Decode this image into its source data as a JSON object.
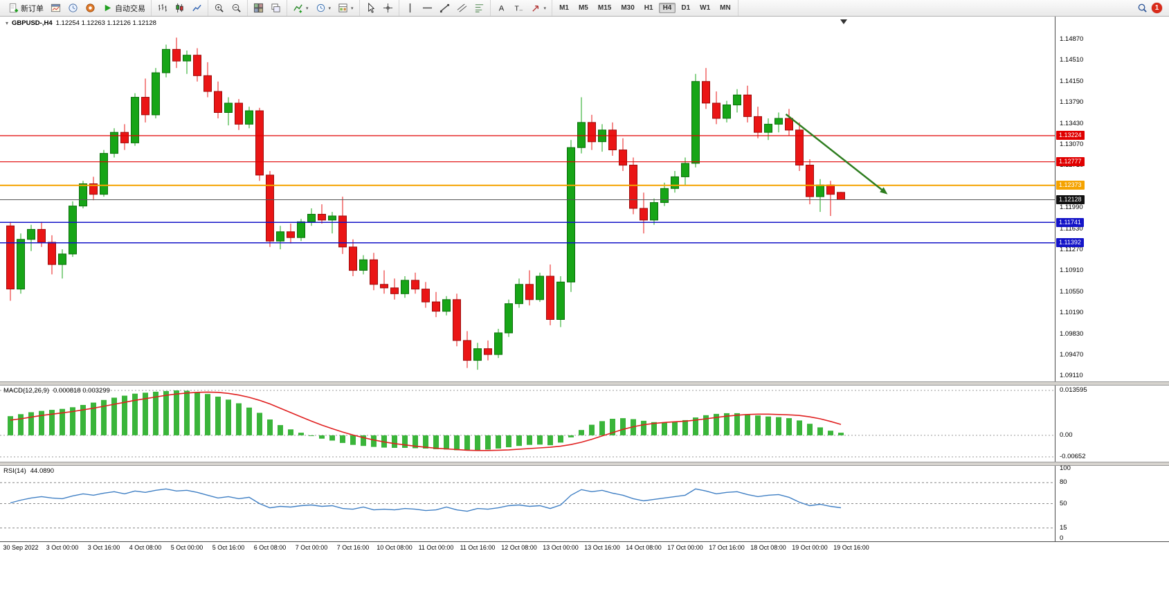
{
  "toolbar": {
    "groups": [
      {
        "items": [
          {
            "name": "new-order-button",
            "icon": "doc-plus",
            "label": "新订单"
          },
          {
            "name": "charts-button",
            "icon": "charts"
          },
          {
            "name": "market-watch-button",
            "icon": "market-watch"
          },
          {
            "name": "data-window-button",
            "icon": "data-window"
          },
          {
            "name": "autotrading-button",
            "icon": "autotrading-play",
            "label": "自动交易"
          }
        ]
      },
      {
        "items": [
          {
            "name": "bar-chart-button",
            "icon": "bar-chart"
          },
          {
            "name": "candlestick-chart-button",
            "icon": "candles"
          },
          {
            "name": "line-chart-button",
            "icon": "line-chart"
          }
        ]
      },
      {
        "items": [
          {
            "name": "zoom-in-button",
            "icon": "zoom-in"
          },
          {
            "name": "zoom-out-button",
            "icon": "zoom-out"
          }
        ]
      },
      {
        "items": [
          {
            "name": "tile-windows-button",
            "icon": "tile-windows"
          },
          {
            "name": "cascade-windows-button",
            "icon": "cascade-windows"
          }
        ]
      },
      {
        "items": [
          {
            "name": "indicators-button",
            "icon": "indicators",
            "caret": true
          },
          {
            "name": "periods-button",
            "icon": "periods-clock",
            "caret": true
          },
          {
            "name": "templates-button",
            "icon": "templates",
            "caret": true
          }
        ]
      },
      {
        "items": [
          {
            "name": "cursor-button",
            "icon": "cursor"
          },
          {
            "name": "crosshair-button",
            "icon": "crosshair"
          }
        ]
      },
      {
        "items": [
          {
            "name": "vertical-line-button",
            "icon": "vline"
          },
          {
            "name": "horizontal-line-button",
            "icon": "hline"
          },
          {
            "name": "trendline-button",
            "icon": "trendline"
          },
          {
            "name": "channel-button",
            "icon": "channel"
          },
          {
            "name": "fibonacci-button",
            "icon": "fibonacci"
          }
        ]
      },
      {
        "items": [
          {
            "name": "text-button",
            "icon": "text-a"
          },
          {
            "name": "text-label-button",
            "icon": "text-label"
          },
          {
            "name": "arrows-button",
            "icon": "arrows-tool",
            "caret": true
          }
        ]
      },
      {
        "items": [
          {
            "name": "tf-m1-button",
            "tf": "M1"
          },
          {
            "name": "tf-m5-button",
            "tf": "M5"
          },
          {
            "name": "tf-m15-button",
            "tf": "M15"
          },
          {
            "name": "tf-m30-button",
            "tf": "M30"
          },
          {
            "name": "tf-h1-button",
            "tf": "H1"
          },
          {
            "name": "tf-h4-button",
            "tf": "H4",
            "selected": true
          },
          {
            "name": "tf-d1-button",
            "tf": "D1"
          },
          {
            "name": "tf-w1-button",
            "tf": "W1"
          },
          {
            "name": "tf-mn-button",
            "tf": "MN"
          }
        ]
      }
    ],
    "right": {
      "badge": "1"
    }
  },
  "chart": {
    "title": "GBPUSD-,H4",
    "ohlc_text": "1.12254 1.12263 1.12126 1.12128"
  },
  "chart_data": {
    "type": "candlestick",
    "symbol": "GBPUSD-",
    "period": "H4",
    "price_range": [
      1.0902,
      1.1526
    ],
    "price_ticks": [
      "1.14870",
      "1.14510",
      "1.14150",
      "1.13790",
      "1.13430",
      "1.13070",
      "1.12710",
      "1.12350",
      "1.11990",
      "1.11630",
      "1.11270",
      "1.10910",
      "1.10550",
      "1.10190",
      "1.09830",
      "1.09470",
      "1.09110"
    ],
    "colors": {
      "up": "#17a517",
      "up_stroke": "#0b6e0b",
      "down": "#ea1515",
      "down_stroke": "#9c0b0b",
      "macd_hist": "#3ab53a",
      "macd_signal": "#e02020",
      "rsi_line": "#3f7fc4",
      "arrow": "#2e7d1f"
    },
    "candles": [
      [
        1.1168,
        1.1175,
        1.104,
        1.106
      ],
      [
        1.106,
        1.1155,
        1.1052,
        1.1145
      ],
      [
        1.1145,
        1.117,
        1.1125,
        1.1162
      ],
      [
        1.1162,
        1.1175,
        1.1132,
        1.114
      ],
      [
        1.114,
        1.1152,
        1.1085,
        1.1102
      ],
      [
        1.1102,
        1.1128,
        1.1078,
        1.112
      ],
      [
        1.112,
        1.121,
        1.1115,
        1.1202
      ],
      [
        1.1202,
        1.1245,
        1.1198,
        1.124
      ],
      [
        1.124,
        1.1252,
        1.1212,
        1.1222
      ],
      [
        1.1222,
        1.1298,
        1.1218,
        1.1292
      ],
      [
        1.1292,
        1.1335,
        1.1285,
        1.1328
      ],
      [
        1.1328,
        1.1342,
        1.1298,
        1.131
      ],
      [
        1.131,
        1.1395,
        1.1305,
        1.1388
      ],
      [
        1.1388,
        1.142,
        1.1345,
        1.1358
      ],
      [
        1.1358,
        1.1438,
        1.1352,
        1.143
      ],
      [
        1.143,
        1.1478,
        1.1422,
        1.147
      ],
      [
        1.147,
        1.149,
        1.1438,
        1.145
      ],
      [
        1.145,
        1.1468,
        1.1428,
        1.146
      ],
      [
        1.146,
        1.1472,
        1.1415,
        1.1425
      ],
      [
        1.1425,
        1.1448,
        1.1388,
        1.1398
      ],
      [
        1.1398,
        1.1415,
        1.1352,
        1.1362
      ],
      [
        1.1362,
        1.1388,
        1.134,
        1.1378
      ],
      [
        1.1378,
        1.1385,
        1.1332,
        1.1342
      ],
      [
        1.1342,
        1.1372,
        1.1335,
        1.1365
      ],
      [
        1.1365,
        1.137,
        1.1245,
        1.1255
      ],
      [
        1.1255,
        1.1262,
        1.1132,
        1.1142
      ],
      [
        1.1142,
        1.1168,
        1.1128,
        1.1158
      ],
      [
        1.1158,
        1.1172,
        1.1138,
        1.1148
      ],
      [
        1.1148,
        1.118,
        1.1142,
        1.1175
      ],
      [
        1.1175,
        1.1198,
        1.1168,
        1.1188
      ],
      [
        1.1188,
        1.1205,
        1.1172,
        1.1178
      ],
      [
        1.1178,
        1.1192,
        1.1155,
        1.1185
      ],
      [
        1.1185,
        1.1218,
        1.112,
        1.1132
      ],
      [
        1.1132,
        1.1145,
        1.1082,
        1.1092
      ],
      [
        1.1092,
        1.1118,
        1.1085,
        1.111
      ],
      [
        1.111,
        1.1122,
        1.1058,
        1.1068
      ],
      [
        1.1068,
        1.1092,
        1.1052,
        1.1062
      ],
      [
        1.1062,
        1.1078,
        1.1042,
        1.1052
      ],
      [
        1.1052,
        1.1082,
        1.1045,
        1.1075
      ],
      [
        1.1075,
        1.1088,
        1.1052,
        1.106
      ],
      [
        1.106,
        1.1072,
        1.1028,
        1.1038
      ],
      [
        1.1038,
        1.1055,
        1.1012,
        1.1022
      ],
      [
        1.1022,
        1.1048,
        1.1015,
        1.1042
      ],
      [
        1.1042,
        1.1052,
        1.0962,
        1.0972
      ],
      [
        1.0972,
        1.0988,
        1.0925,
        1.0938
      ],
      [
        1.0938,
        1.0968,
        1.0922,
        1.0958
      ],
      [
        1.0958,
        1.0972,
        1.0938,
        1.0948
      ],
      [
        1.0948,
        1.0992,
        1.0942,
        1.0985
      ],
      [
        1.0985,
        1.1042,
        1.0978,
        1.1035
      ],
      [
        1.1035,
        1.1078,
        1.1028,
        1.1068
      ],
      [
        1.1068,
        1.1092,
        1.1032,
        1.1042
      ],
      [
        1.1042,
        1.1088,
        1.1038,
        1.1082
      ],
      [
        1.1082,
        1.1102,
        1.0998,
        1.1008
      ],
      [
        1.1008,
        1.1082,
        1.0995,
        1.1072
      ],
      [
        1.1072,
        1.1315,
        1.1055,
        1.1302
      ],
      [
        1.1302,
        1.1388,
        1.1292,
        1.1345
      ],
      [
        1.1345,
        1.1358,
        1.1298,
        1.1312
      ],
      [
        1.1312,
        1.1342,
        1.1295,
        1.1332
      ],
      [
        1.1332,
        1.1345,
        1.1288,
        1.1298
      ],
      [
        1.1298,
        1.1318,
        1.1262,
        1.1272
      ],
      [
        1.1272,
        1.1285,
        1.1188,
        1.1198
      ],
      [
        1.1198,
        1.1225,
        1.1155,
        1.1178
      ],
      [
        1.1178,
        1.1215,
        1.117,
        1.1208
      ],
      [
        1.1208,
        1.1242,
        1.1202,
        1.1232
      ],
      [
        1.1232,
        1.1262,
        1.1225,
        1.1252
      ],
      [
        1.1252,
        1.1285,
        1.1238,
        1.1275
      ],
      [
        1.1275,
        1.1428,
        1.1268,
        1.1415
      ],
      [
        1.1415,
        1.1438,
        1.1368,
        1.1378
      ],
      [
        1.1378,
        1.1398,
        1.1342,
        1.1352
      ],
      [
        1.1352,
        1.1382,
        1.1345,
        1.1375
      ],
      [
        1.1375,
        1.1402,
        1.1362,
        1.1392
      ],
      [
        1.1392,
        1.1408,
        1.1345,
        1.1355
      ],
      [
        1.1355,
        1.1372,
        1.1318,
        1.1328
      ],
      [
        1.1328,
        1.1352,
        1.1315,
        1.1342
      ],
      [
        1.1342,
        1.1362,
        1.1328,
        1.1352
      ],
      [
        1.1352,
        1.1368,
        1.1322,
        1.1332
      ],
      [
        1.1332,
        1.1345,
        1.1262,
        1.1272
      ],
      [
        1.1272,
        1.1282,
        1.1205,
        1.1218
      ],
      [
        1.1218,
        1.1248,
        1.1192,
        1.1238
      ],
      [
        1.1238,
        1.1245,
        1.1185,
        1.1222
      ],
      [
        1.12254,
        1.12263,
        1.12126,
        1.12128
      ]
    ],
    "levels": [
      {
        "price": 1.13224,
        "label": "1.13224",
        "color": "#e00000",
        "width": 1.2
      },
      {
        "price": 1.12777,
        "label": "1.12777",
        "color": "#e00000",
        "width": 1.2
      },
      {
        "price": 1.12373,
        "label": "1.12373",
        "color": "#f5a300",
        "width": 2
      },
      {
        "price": 1.12128,
        "label": "1.12128",
        "color": "#555555",
        "width": 1,
        "box": "#111111"
      },
      {
        "price": 1.11741,
        "label": "1.11741",
        "color": "#1414c8",
        "width": 1.5
      },
      {
        "price": 1.11392,
        "label": "1.11392",
        "color": "#1414c8",
        "width": 1.5
      }
    ],
    "arrow": {
      "from_bar": 74.7,
      "from_price": 1.1359,
      "to_bar": 84.5,
      "to_price": 1.1222
    },
    "time_labels": [
      {
        "text": "30 Sep 2022",
        "bar": 1
      },
      {
        "text": "3 Oct 00:00",
        "bar": 5
      },
      {
        "text": "3 Oct 16:00",
        "bar": 9
      },
      {
        "text": "4 Oct 08:00",
        "bar": 13
      },
      {
        "text": "5 Oct 00:00",
        "bar": 17
      },
      {
        "text": "5 Oct 16:00",
        "bar": 21
      },
      {
        "text": "6 Oct 08:00",
        "bar": 25
      },
      {
        "text": "7 Oct 00:00",
        "bar": 29
      },
      {
        "text": "7 Oct 16:00",
        "bar": 33
      },
      {
        "text": "10 Oct 08:00",
        "bar": 37
      },
      {
        "text": "11 Oct 00:00",
        "bar": 41
      },
      {
        "text": "11 Oct 16:00",
        "bar": 45
      },
      {
        "text": "12 Oct 08:00",
        "bar": 49
      },
      {
        "text": "13 Oct 00:00",
        "bar": 53
      },
      {
        "text": "13 Oct 16:00",
        "bar": 57
      },
      {
        "text": "14 Oct 08:00",
        "bar": 61
      },
      {
        "text": "17 Oct 00:00",
        "bar": 65
      },
      {
        "text": "17 Oct 16:00",
        "bar": 69
      },
      {
        "text": "18 Oct 08:00",
        "bar": 73
      },
      {
        "text": "19 Oct 00:00",
        "bar": 77
      },
      {
        "text": "19 Oct 16:00",
        "bar": 81
      }
    ],
    "macd": {
      "label": "MACD(12,26,9)",
      "values_text": "0.000818 0.003299",
      "max": 0.013595,
      "min": -0.00652,
      "axis_labels": [
        "0.013595",
        "0.00",
        "-0.00652"
      ],
      "histogram": [
        0.0058,
        0.0064,
        0.007,
        0.0074,
        0.0077,
        0.008,
        0.0085,
        0.0092,
        0.0099,
        0.0107,
        0.0114,
        0.012,
        0.0126,
        0.0129,
        0.0132,
        0.0134,
        0.0136,
        0.0135,
        0.0131,
        0.0125,
        0.0117,
        0.0108,
        0.0097,
        0.0084,
        0.0068,
        0.0048,
        0.0031,
        0.0018,
        0.0008,
        -0.0002,
        -0.001,
        -0.0016,
        -0.0023,
        -0.0029,
        -0.0032,
        -0.0035,
        -0.0037,
        -0.0038,
        -0.0038,
        -0.0039,
        -0.004,
        -0.0042,
        -0.0043,
        -0.0045,
        -0.0046,
        -0.0045,
        -0.0043,
        -0.004,
        -0.0036,
        -0.0032,
        -0.0029,
        -0.0028,
        -0.003,
        -0.0022,
        -0.0006,
        0.0016,
        0.0032,
        0.0043,
        0.005,
        0.0052,
        0.0049,
        0.0044,
        0.004,
        0.0039,
        0.0041,
        0.0046,
        0.0054,
        0.0061,
        0.0065,
        0.0067,
        0.0067,
        0.0064,
        0.006,
        0.0057,
        0.0055,
        0.0052,
        0.0045,
        0.0035,
        0.0024,
        0.0014,
        0.0008
      ],
      "signal": [
        0.0046,
        0.005,
        0.0055,
        0.006,
        0.0064,
        0.0068,
        0.0072,
        0.0077,
        0.0082,
        0.0088,
        0.0094,
        0.01,
        0.0106,
        0.0111,
        0.0116,
        0.0121,
        0.0125,
        0.0128,
        0.013,
        0.0131,
        0.013,
        0.0127,
        0.0122,
        0.0115,
        0.0106,
        0.0095,
        0.0082,
        0.0069,
        0.0056,
        0.0043,
        0.0031,
        0.002,
        0.001,
        0.0001,
        -0.0007,
        -0.0014,
        -0.002,
        -0.0025,
        -0.0029,
        -0.0033,
        -0.0036,
        -0.0039,
        -0.0041,
        -0.0043,
        -0.0045,
        -0.0046,
        -0.0046,
        -0.0045,
        -0.0044,
        -0.0042,
        -0.004,
        -0.0038,
        -0.0036,
        -0.0033,
        -0.0028,
        -0.0021,
        -0.0012,
        -0.0002,
        0.0008,
        0.0018,
        0.0026,
        0.0032,
        0.0036,
        0.0039,
        0.0041,
        0.0043,
        0.0046,
        0.005,
        0.0054,
        0.0058,
        0.0061,
        0.0063,
        0.0064,
        0.0064,
        0.0063,
        0.0062,
        0.006,
        0.0056,
        0.005,
        0.0042,
        0.0033
      ]
    },
    "rsi": {
      "label": "RSI(14)",
      "value_text": "44.0890",
      "levels": [
        80,
        50,
        15
      ],
      "axis_labels": [
        {
          "text": "100",
          "v": 100
        },
        {
          "text": "80",
          "v": 80
        },
        {
          "text": "50",
          "v": 50
        },
        {
          "text": "15",
          "v": 15
        },
        {
          "text": "0",
          "v": 0
        }
      ],
      "values": [
        51,
        55,
        58,
        60,
        58,
        57,
        61,
        64,
        62,
        65,
        67,
        64,
        68,
        66,
        69,
        71,
        68,
        69,
        66,
        62,
        58,
        60,
        57,
        59,
        50,
        44,
        46,
        45,
        47,
        48,
        46,
        47,
        43,
        42,
        45,
        41,
        42,
        41,
        43,
        42,
        40,
        41,
        45,
        41,
        39,
        43,
        42,
        44,
        47,
        48,
        46,
        47,
        43,
        48,
        62,
        70,
        67,
        69,
        65,
        62,
        57,
        54,
        56,
        58,
        60,
        62,
        71,
        68,
        64,
        66,
        67,
        63,
        60,
        62,
        63,
        59,
        52,
        47,
        49,
        46,
        44.089
      ]
    }
  }
}
